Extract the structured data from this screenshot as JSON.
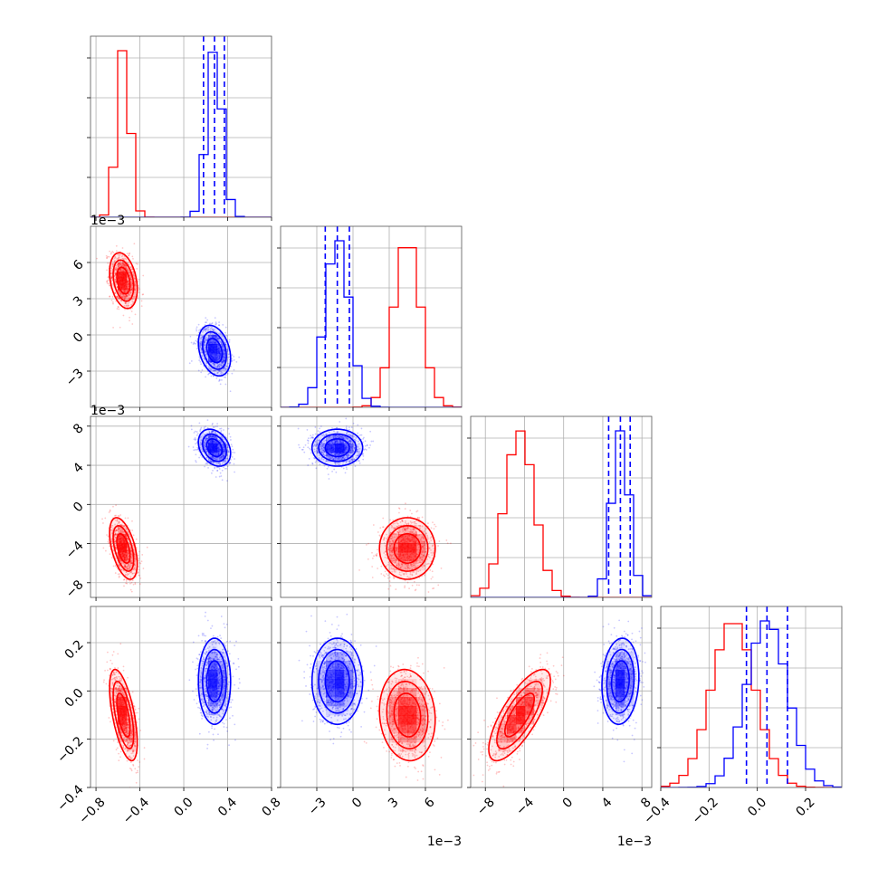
{
  "chart_data": {
    "type": "corner",
    "parameters": [
      {
        "range": [
          -0.85,
          0.8
        ],
        "ticks": [
          -0.8,
          -0.4,
          0.0,
          0.4,
          0.8
        ],
        "tick_labels": [
          "−0.8",
          "−0.4",
          "0.0",
          "0.4",
          "0.8"
        ],
        "offset": ""
      },
      {
        "range": [
          -6.0,
          9.0
        ],
        "ticks": [
          -3,
          0,
          3,
          6
        ],
        "tick_labels": [
          "−3",
          "0",
          "3",
          "6"
        ],
        "offset": "1e−3"
      },
      {
        "range": [
          -9.5,
          9.0
        ],
        "ticks": [
          -8,
          -4,
          0,
          4,
          8
        ],
        "tick_labels": [
          "−8",
          "−4",
          "0",
          "4",
          "8"
        ],
        "offset": "1e−3"
      },
      {
        "range": [
          -0.4,
          0.35
        ],
        "ticks": [
          -0.4,
          -0.2,
          0.0,
          0.2
        ],
        "tick_labels": [
          "−0.4",
          "−0.2",
          "0.0",
          "0.2"
        ],
        "offset": ""
      }
    ],
    "series": [
      {
        "color": "#ff0000",
        "mean": [
          -0.55,
          4.5,
          -4.5,
          -0.1
        ],
        "sd": [
          0.06,
          1.1,
          1.5,
          0.09
        ],
        "corr": [
          [
            1,
            -0.3,
            -0.5,
            -0.6
          ],
          [
            -0.3,
            1,
            0.0,
            -0.1
          ],
          [
            -0.5,
            0.0,
            1,
            0.75
          ],
          [
            -0.6,
            -0.1,
            0.75,
            1
          ]
        ]
      },
      {
        "color": "#0000ff",
        "mean": [
          0.28,
          -1.3,
          5.8,
          0.04
        ],
        "sd": [
          0.07,
          1.0,
          0.9,
          0.085
        ],
        "corr": [
          [
            1,
            -0.3,
            -0.3,
            0.0
          ],
          [
            -0.3,
            1,
            0.0,
            0.0
          ],
          [
            -0.3,
            0.0,
            1,
            0.1
          ],
          [
            0.0,
            0.0,
            0.1,
            1
          ]
        ]
      }
    ],
    "quantile_lines": {
      "color": "#0000ff",
      "values": [
        [
          0.18,
          0.28,
          0.37
        ],
        [
          -2.3,
          -1.3,
          -0.3
        ],
        [
          4.6,
          5.8,
          6.8
        ],
        [
          -0.045,
          0.04,
          0.125
        ]
      ]
    },
    "histogram_bins": 20,
    "grid": true,
    "legend": "none"
  }
}
